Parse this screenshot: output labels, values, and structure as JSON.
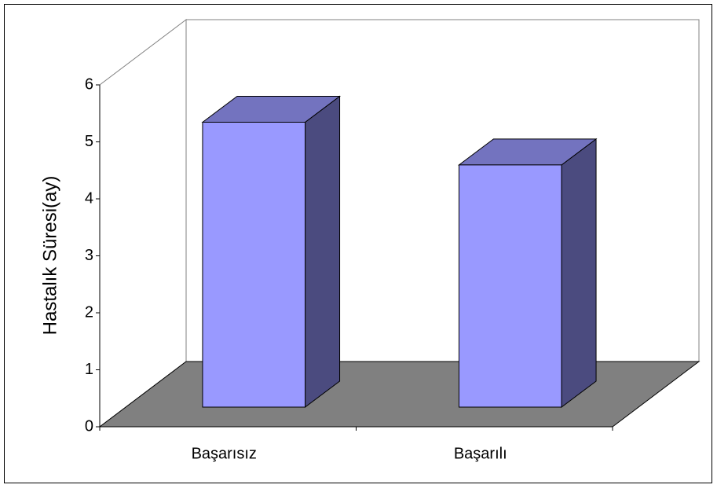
{
  "chart_data": {
    "type": "bar3d",
    "y_label": "Hastalık Süresi(ay)",
    "categories": [
      "Başarısız",
      "Başarılı"
    ],
    "values": [
      5.0,
      4.25
    ],
    "color": "#9999ff",
    "ylim": [
      0,
      6
    ],
    "yticks": [
      0,
      1,
      2,
      3,
      4,
      5,
      6
    ]
  }
}
